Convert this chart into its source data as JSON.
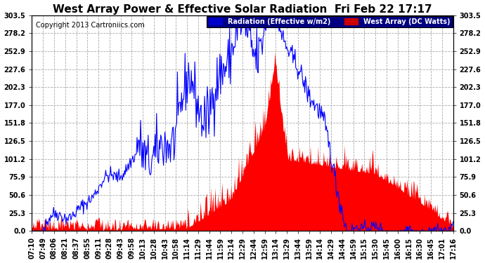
{
  "title": "West Array Power & Effective Solar Radiation  Fri Feb 22 17:17",
  "copyright": "Copyright 2013 Cartroniics.com",
  "legend_radiation": "Radiation (Effective w/m2)",
  "legend_west": "West Array (DC Watts)",
  "legend_radiation_bg": "#0000cc",
  "legend_west_bg": "#cc0000",
  "background_color": "#ffffff",
  "plot_bg": "#ffffff",
  "grid_color": "#aaaaaa",
  "ymin": 0.0,
  "ymax": 303.5,
  "yticks": [
    0.0,
    25.3,
    50.6,
    75.9,
    101.2,
    126.5,
    151.8,
    177.0,
    202.3,
    227.6,
    252.9,
    278.2,
    303.5
  ],
  "x_labels": [
    "07:10",
    "07:49",
    "08:06",
    "08:21",
    "08:37",
    "08:55",
    "09:11",
    "09:28",
    "09:43",
    "09:58",
    "10:13",
    "10:28",
    "10:43",
    "10:58",
    "11:14",
    "11:29",
    "11:44",
    "11:59",
    "12:14",
    "12:29",
    "12:44",
    "12:59",
    "13:14",
    "13:29",
    "13:44",
    "13:59",
    "14:14",
    "14:29",
    "14:44",
    "14:59",
    "15:15",
    "15:30",
    "15:45",
    "16:00",
    "16:15",
    "16:30",
    "16:45",
    "17:01",
    "17:16"
  ],
  "radiation_color": "#0000ff",
  "west_color": "#ff0000",
  "title_fontsize": 11,
  "axis_fontsize": 7,
  "copyright_fontsize": 7
}
